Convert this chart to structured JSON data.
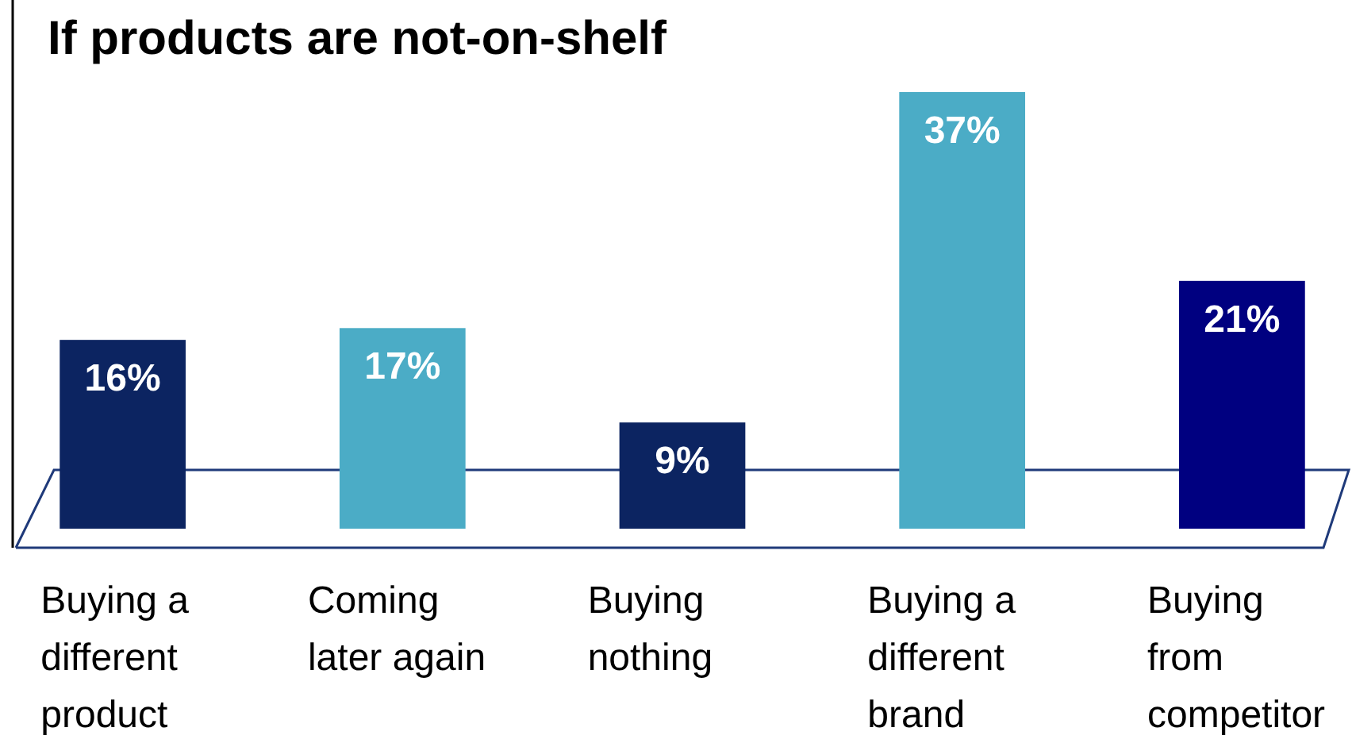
{
  "chart_data": {
    "type": "bar",
    "title": "If products are not-on-shelf",
    "categories": [
      "Buying a different product",
      "Coming later again",
      "Buying nothing",
      "Buying a different brand",
      "Buying from competitor"
    ],
    "values": [
      16,
      17,
      9,
      37,
      21
    ],
    "colors": [
      "#0c2461",
      "#4bacc6",
      "#0c2461",
      "#4bacc6",
      "#000080"
    ],
    "value_labels": [
      "16%",
      "17%",
      "9%",
      "37%",
      "21%"
    ],
    "ylim": [
      0,
      37
    ],
    "tick_labels": "x"
  }
}
